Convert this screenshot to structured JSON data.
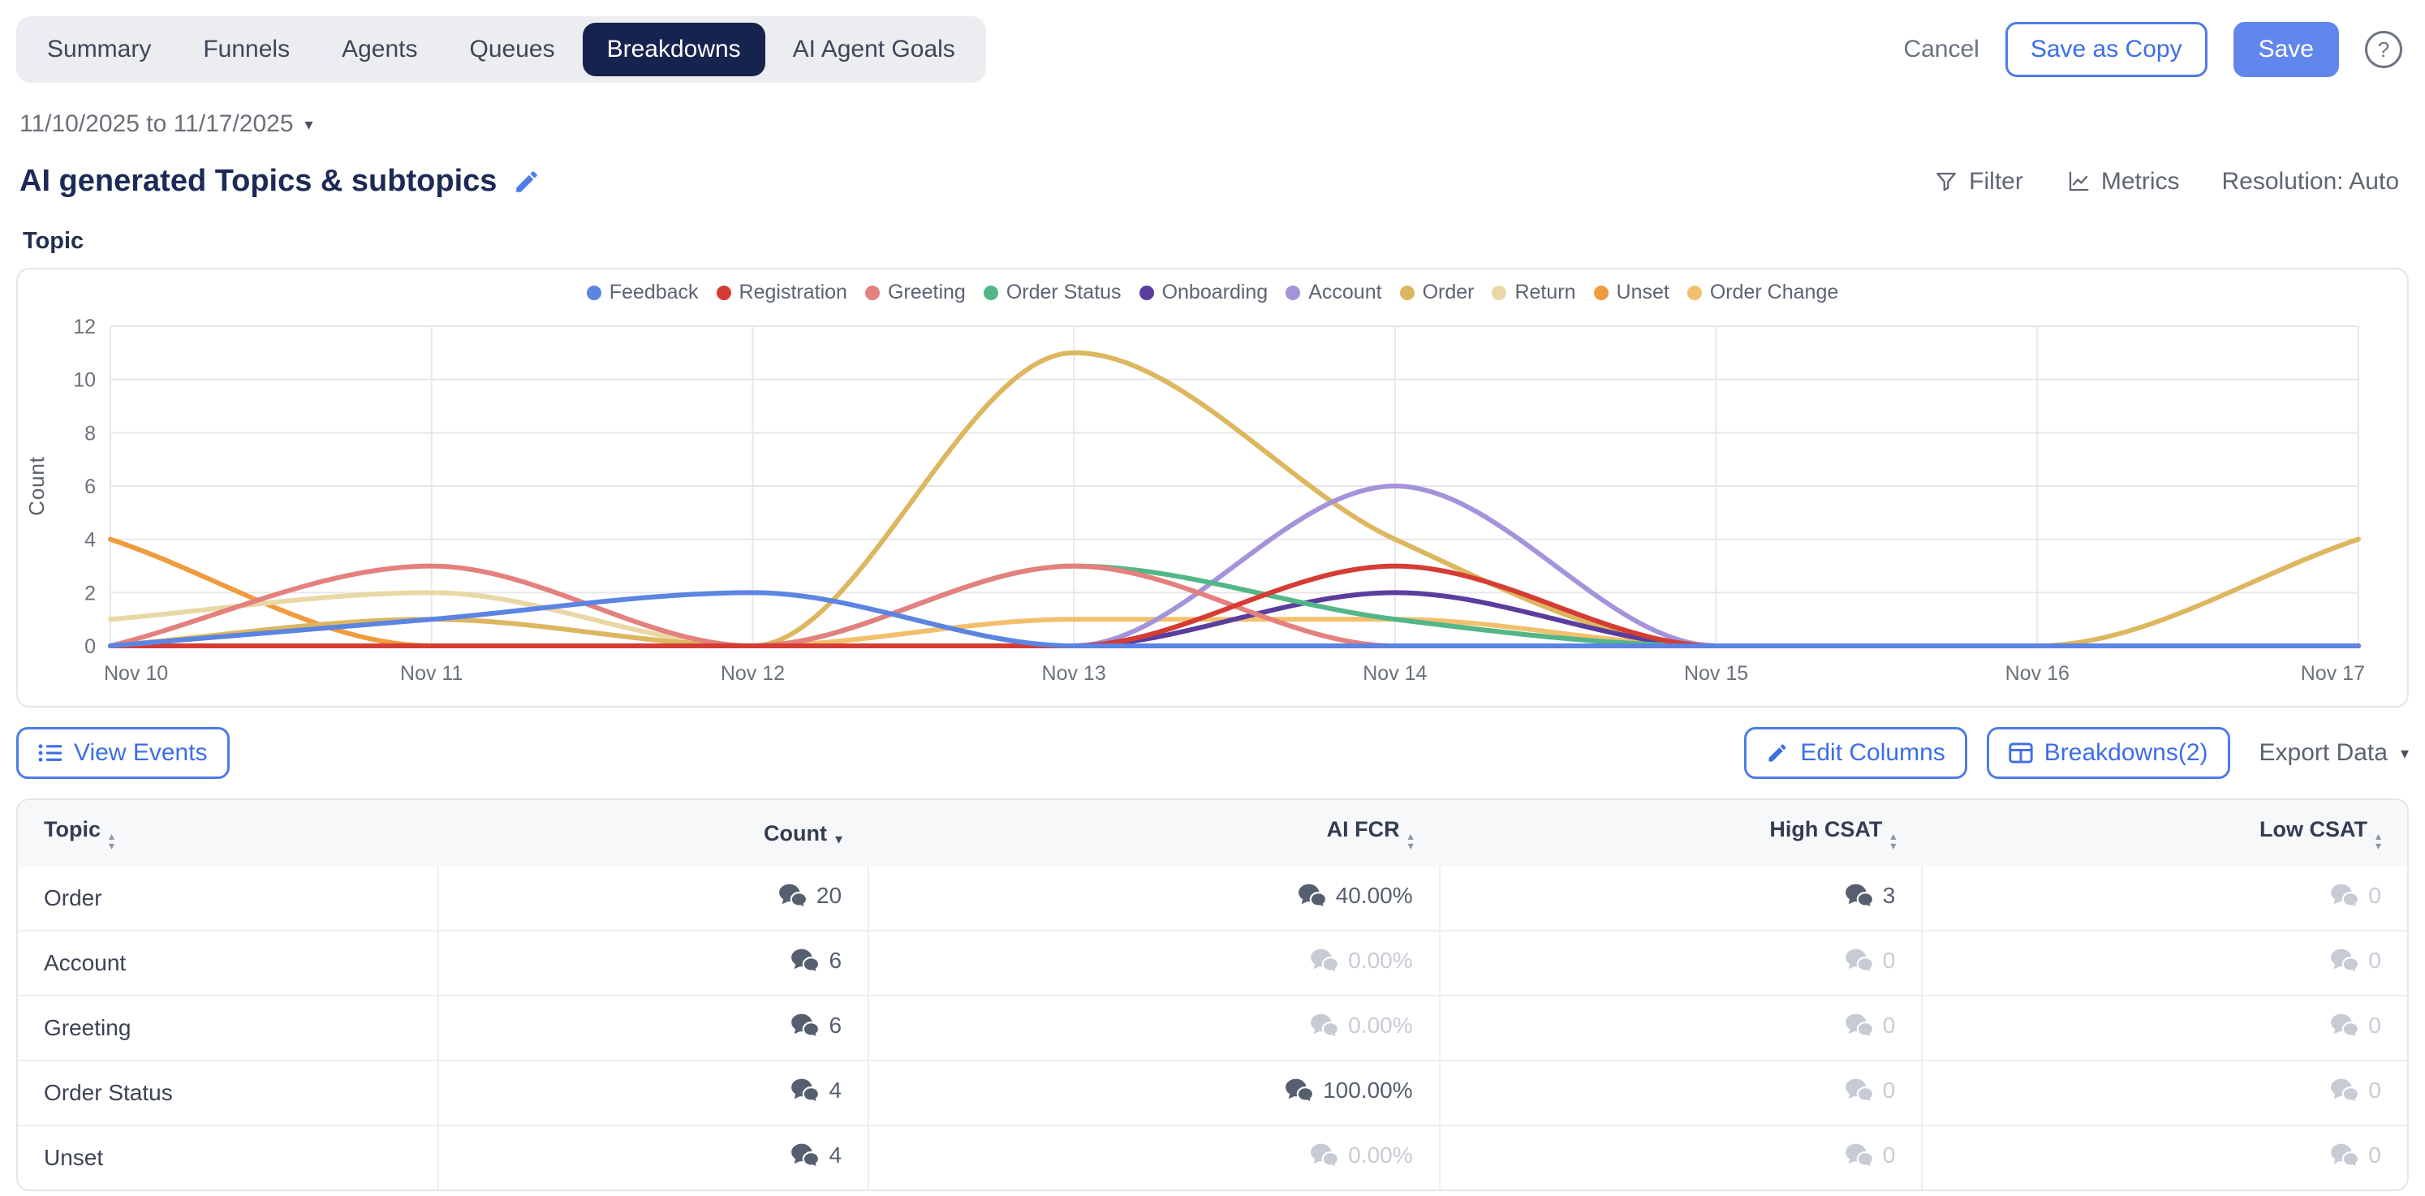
{
  "tabs": {
    "items": [
      {
        "label": "Summary",
        "active": false
      },
      {
        "label": "Funnels",
        "active": false
      },
      {
        "label": "Agents",
        "active": false
      },
      {
        "label": "Queues",
        "active": false
      },
      {
        "label": "Breakdowns",
        "active": true
      },
      {
        "label": "AI Agent Goals",
        "active": false
      }
    ]
  },
  "actions": {
    "cancel": "Cancel",
    "save_as_copy": "Save as Copy",
    "save": "Save",
    "help": "?"
  },
  "date_range": {
    "label": "11/10/2025 to 11/17/2025"
  },
  "page": {
    "title": "AI generated Topics & subtopics"
  },
  "toolbar": {
    "filter": "Filter",
    "metrics": "Metrics",
    "resolution": "Resolution: Auto"
  },
  "section": {
    "label": "Topic"
  },
  "chart_data": {
    "type": "line",
    "x": [
      "Nov 10",
      "Nov 11",
      "Nov 12",
      "Nov 13",
      "Nov 14",
      "Nov 15",
      "Nov 16",
      "Nov 17"
    ],
    "ylabel": "Count",
    "xlabel": "",
    "ylim": [
      0,
      12
    ],
    "yticks": [
      0,
      2,
      4,
      6,
      8,
      10,
      12
    ],
    "grid": true,
    "legend_position": "top",
    "curve": "smooth-monotone",
    "series": [
      {
        "name": "Feedback",
        "color": "#5b84e3",
        "values": [
          0,
          1,
          2,
          0,
          0,
          0,
          0,
          0
        ]
      },
      {
        "name": "Registration",
        "color": "#d53c34",
        "values": [
          0,
          0,
          0,
          0,
          3,
          0,
          0,
          0
        ]
      },
      {
        "name": "Greeting",
        "color": "#e4807d",
        "values": [
          0,
          3,
          0,
          3,
          0,
          0,
          0,
          0
        ]
      },
      {
        "name": "Order Status",
        "color": "#53b687",
        "values": [
          0,
          0,
          0,
          3,
          1,
          0,
          0,
          0
        ]
      },
      {
        "name": "Onboarding",
        "color": "#5b3d9e",
        "values": [
          0,
          0,
          0,
          0,
          2,
          0,
          0,
          0
        ]
      },
      {
        "name": "Account",
        "color": "#a493da",
        "values": [
          0,
          0,
          0,
          0,
          6,
          0,
          0,
          0
        ]
      },
      {
        "name": "Order",
        "color": "#ddb660",
        "values": [
          0,
          1,
          0,
          11,
          4,
          0,
          0,
          4
        ]
      },
      {
        "name": "Return",
        "color": "#e9d8a5",
        "values": [
          1,
          2,
          0,
          0,
          0,
          0,
          0,
          0
        ]
      },
      {
        "name": "Unset",
        "color": "#f09b3e",
        "values": [
          4,
          0,
          0,
          0,
          0,
          0,
          0,
          0
        ]
      },
      {
        "name": "Order Change",
        "color": "#f2c06d",
        "values": [
          0,
          0,
          0,
          1,
          1,
          0,
          0,
          0
        ]
      }
    ]
  },
  "table_actions": {
    "view_events": "View Events",
    "edit_columns": "Edit Columns",
    "breakdowns": "Breakdowns(2)",
    "export_data": "Export Data"
  },
  "table": {
    "columns": [
      {
        "label": "Topic",
        "sort": "both"
      },
      {
        "label": "Count",
        "sort": "desc"
      },
      {
        "label": "AI FCR",
        "sort": "both"
      },
      {
        "label": "High CSAT",
        "sort": "both"
      },
      {
        "label": "Low CSAT",
        "sort": "both"
      }
    ],
    "rows": [
      {
        "topic": "Order",
        "cells": [
          {
            "v": "20",
            "muted": false
          },
          {
            "v": "40.00%",
            "muted": false
          },
          {
            "v": "3",
            "muted": false
          },
          {
            "v": "0",
            "muted": true
          }
        ]
      },
      {
        "topic": "Account",
        "cells": [
          {
            "v": "6",
            "muted": false
          },
          {
            "v": "0.00%",
            "muted": true
          },
          {
            "v": "0",
            "muted": true
          },
          {
            "v": "0",
            "muted": true
          }
        ]
      },
      {
        "topic": "Greeting",
        "cells": [
          {
            "v": "6",
            "muted": false
          },
          {
            "v": "0.00%",
            "muted": true
          },
          {
            "v": "0",
            "muted": true
          },
          {
            "v": "0",
            "muted": true
          }
        ]
      },
      {
        "topic": "Order Status",
        "cells": [
          {
            "v": "4",
            "muted": false
          },
          {
            "v": "100.00%",
            "muted": false
          },
          {
            "v": "0",
            "muted": true
          },
          {
            "v": "0",
            "muted": true
          }
        ]
      },
      {
        "topic": "Unset",
        "cells": [
          {
            "v": "4",
            "muted": false
          },
          {
            "v": "0.00%",
            "muted": true
          },
          {
            "v": "0",
            "muted": true
          },
          {
            "v": "0",
            "muted": true
          }
        ]
      }
    ]
  },
  "icons": {
    "title_edit": "pencil-icon",
    "filter": "funnel-icon",
    "metrics": "line-chart-icon",
    "help": "question-circle-icon",
    "date_caret": "chevron-down-icon",
    "view_events": "list-icon",
    "edit_columns": "pencil-icon",
    "breakdowns": "table-grid-icon",
    "export_caret": "chevron-down-icon",
    "count_cells": "chat-bubbles-icon"
  },
  "colors": {
    "accent_blue": "#4e7be8",
    "save_bg": "#6186ec",
    "active_tab_bg": "#16234e",
    "muted_value": "#c7cbd3"
  }
}
